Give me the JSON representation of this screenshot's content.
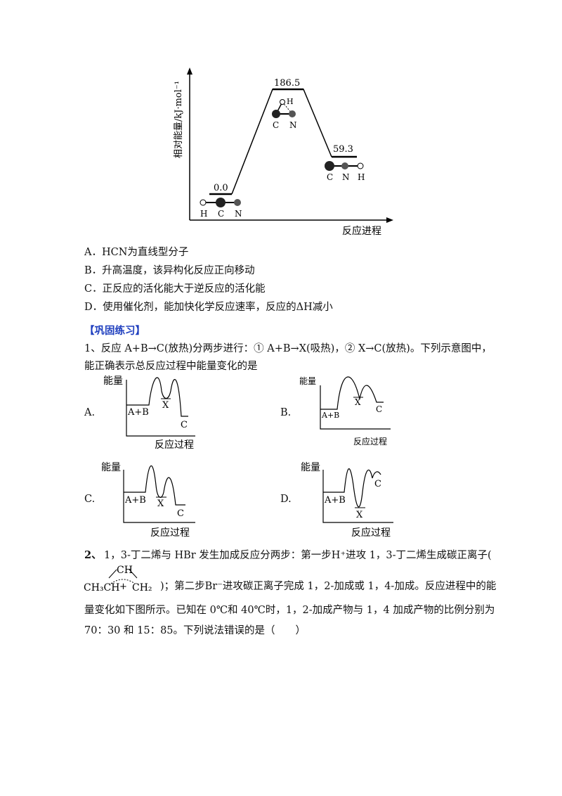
{
  "top_figure": {
    "ylabel": "相对能量/kJ·mol⁻¹",
    "xlabel": "反应进程",
    "levels": [
      {
        "value_label": "0.0",
        "atoms": [
          "H",
          "C",
          "N"
        ]
      },
      {
        "value_label": "186.5",
        "atoms": [
          "H",
          "C",
          "N"
        ]
      },
      {
        "value_label": "59.3",
        "atoms": [
          "C",
          "N",
          "H"
        ]
      }
    ]
  },
  "q_options": [
    "A．HCN为直线型分子",
    "B．升高温度，该异构化反应正向移动",
    "C．正反应的活化能大于逆反应的活化能",
    "D．使用催化剂，能加快化学反应速率，反应的ΔH减小"
  ],
  "section_title": "【巩固练习】",
  "q1": {
    "line1": "1、反应 A+B→C(放热)分两步进行：① A+B→X(吸热)，② X→C(放热)。下列示意图中，",
    "line2": "能正确表示总反应过程中能量变化的是"
  },
  "small_charts": [
    {
      "option": "A.",
      "ylabel": "能量",
      "xlabel": "反应过程",
      "start": "A+B",
      "mid": "X",
      "end": "C"
    },
    {
      "option": "B.",
      "ylabel": "能量",
      "xlabel": "反应过程",
      "start": "A+B",
      "mid": "X",
      "end": "C"
    },
    {
      "option": "C.",
      "ylabel": "能量",
      "xlabel": "反应过程",
      "start": "A+B",
      "mid": "X",
      "end": "C"
    },
    {
      "option": "D.",
      "ylabel": "能量",
      "xlabel": "反应过程",
      "start": "A+B",
      "mid": "X",
      "end": "C"
    }
  ],
  "q2": {
    "number": "2、",
    "line1": "1，3-丁二烯与 HBr 发生加成反应分两步：第一步H⁺进攻 1，3-丁二烯生成碳正离子(",
    "formula_top": "CH",
    "formula_left": "CH₃CH",
    "formula_plus": "+",
    "formula_right": "CH₂",
    "line2_rest": ")；第二步Br⁻进攻碳正离子完成 1，2-加成或 1，4-加成。反应进程中的能",
    "line3": "量变化如下图所示。已知在 0℃和 40℃时，1，2-加成产物与 1，4 加成产物的比例分别为",
    "line4": "70：30 和 15：85。下列说法错误的是（　　）"
  }
}
